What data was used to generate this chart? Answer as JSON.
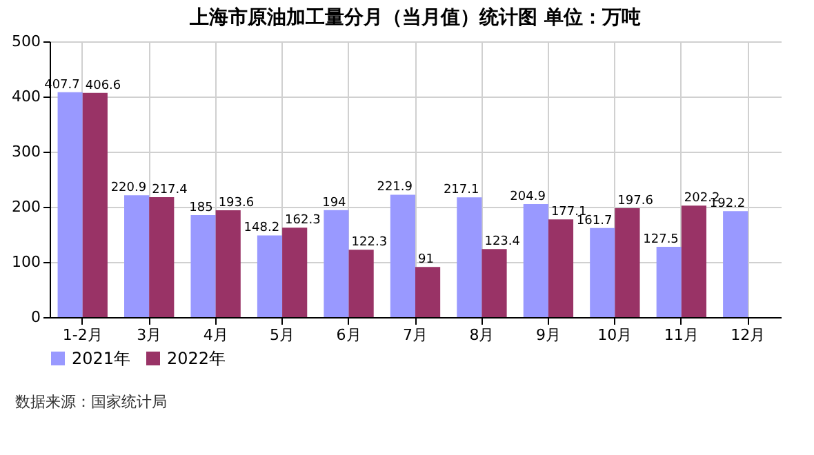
{
  "chart_data": {
    "type": "bar",
    "title": "上海市原油加工量分月（当月值）统计图 单位：万吨",
    "categories": [
      "1-2月",
      "3月",
      "4月",
      "5月",
      "6月",
      "7月",
      "8月",
      "9月",
      "10月",
      "11月",
      "12月"
    ],
    "series": [
      {
        "name": "2021年",
        "color": "#9999ff",
        "values": [
          407.7,
          220.9,
          185,
          148.2,
          194,
          221.9,
          217.1,
          204.9,
          161.7,
          127.5,
          192.2
        ]
      },
      {
        "name": "2022年",
        "color": "#993366",
        "values": [
          406.6,
          217.4,
          193.6,
          162.3,
          122.3,
          91,
          123.4,
          177.1,
          197.6,
          202.2,
          null
        ]
      }
    ],
    "ylim": [
      0,
      500
    ],
    "yticks": [
      0,
      100,
      200,
      300,
      400,
      500
    ],
    "grid": true,
    "legend": "bottom",
    "data_labels": true,
    "annotations": [
      "数据来源：国家统计局"
    ]
  }
}
